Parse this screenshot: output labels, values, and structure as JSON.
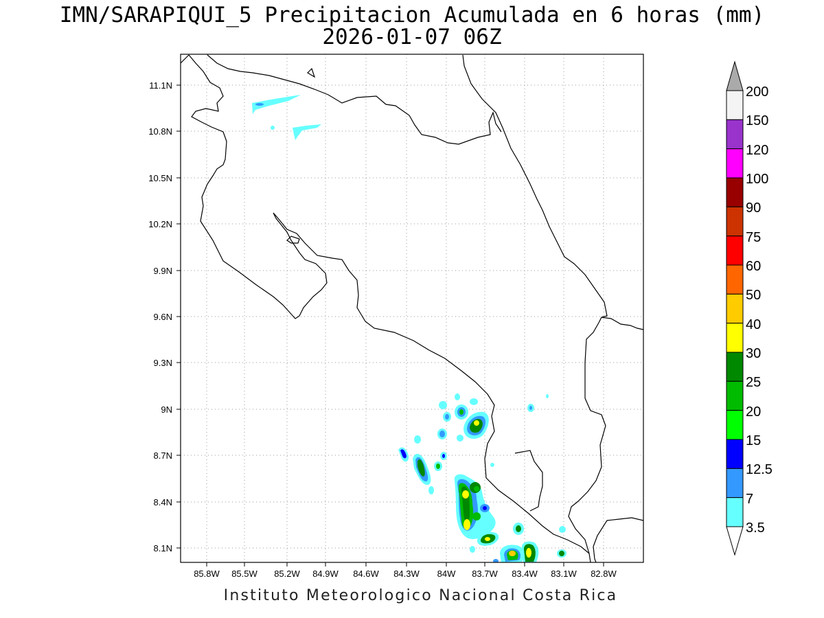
{
  "title": {
    "line1": "IMN/SARAPIQUI_5 Precipitacion Acumulada en 6 horas (mm)",
    "line2": "2026-01-07 06Z"
  },
  "footer": "Instituto Meteorologico Nacional Costa Rica",
  "axes": {
    "lat_ticks": [
      "11.1N",
      "10.8N",
      "10.5N",
      "10.2N",
      "9.9N",
      "9.6N",
      "9.3N",
      "9N",
      "8.7N",
      "8.4N",
      "8.1N"
    ],
    "lon_ticks": [
      "85.8W",
      "85.5W",
      "85.2W",
      "84.9W",
      "84.6W",
      "84.3W",
      "84W",
      "83.7W",
      "83.4W",
      "83.1W",
      "82.8W"
    ]
  },
  "legend": {
    "labels": [
      "200",
      "150",
      "120",
      "100",
      "90",
      "75",
      "60",
      "50",
      "40",
      "30",
      "25",
      "20",
      "15",
      "12.5",
      "7",
      "3.5"
    ],
    "colors": [
      "#f4f4f4",
      "#9933cc",
      "#ff00ff",
      "#990000",
      "#cc3300",
      "#ff0000",
      "#ff6600",
      "#ffcc00",
      "#ffff00",
      "#008800",
      "#00bb00",
      "#00ff00",
      "#0000ff",
      "#3399ff",
      "#66ffff"
    ],
    "over_color": "#aaaaaa"
  }
}
